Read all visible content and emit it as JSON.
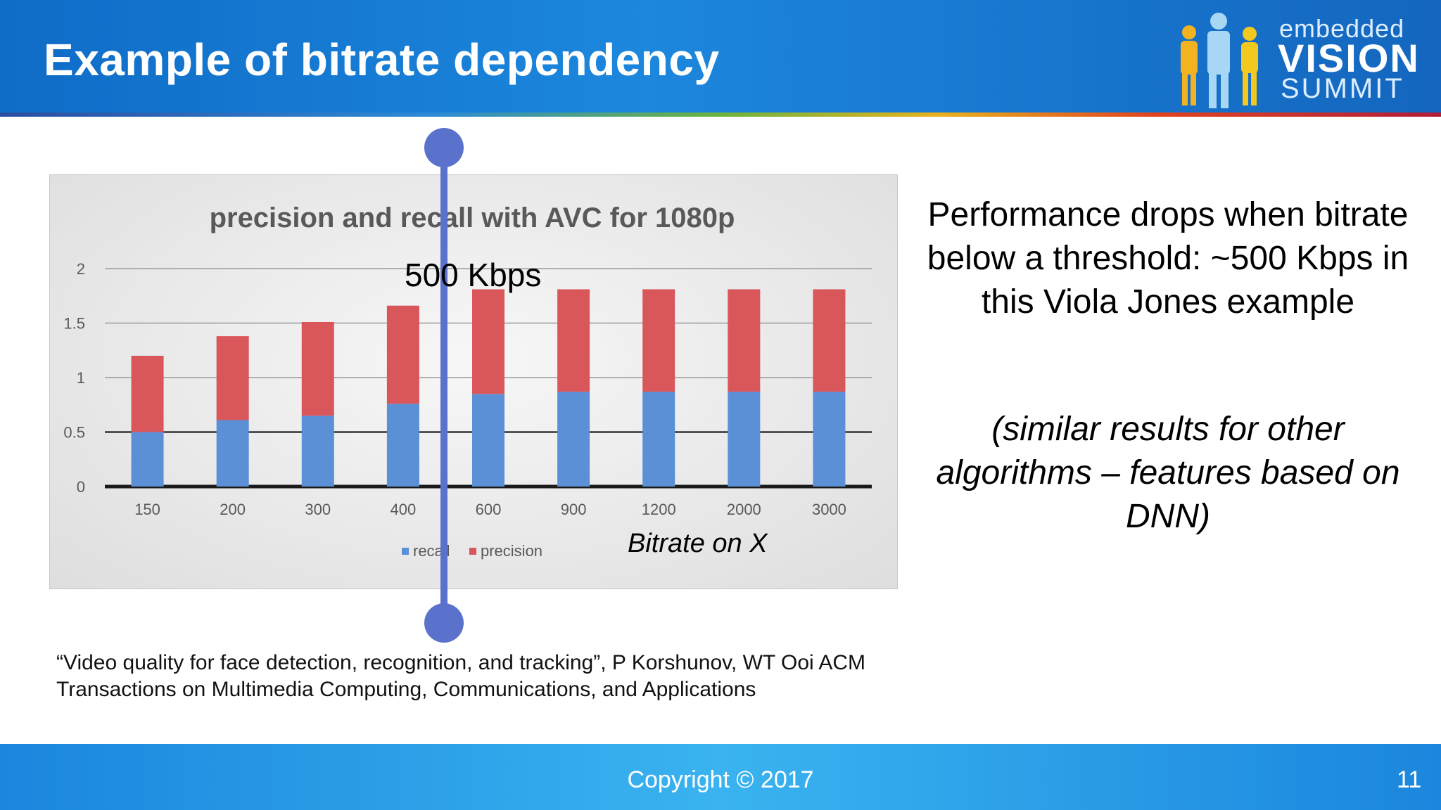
{
  "slide": {
    "title": "Example of bitrate dependency",
    "logo": {
      "line1": "embedded",
      "line2": "VISION",
      "line3": "SUMMIT"
    },
    "threshold_label": "500 Kbps",
    "x_axis_note": "Bitrate on X",
    "summary": "Performance drops when bitrate below a threshold: ~500 Kbps in this Viola Jones example",
    "note": "(similar results for other algorithms – features based on DNN)",
    "citation": "“Video quality for face detection, recognition, and tracking”, P Korshunov, WT Ooi ACM Transactions on Multimedia Computing, Communications, and Applications",
    "footer": {
      "copyright": "Copyright © 2017",
      "page_number": "11"
    }
  },
  "chart_data": {
    "type": "bar",
    "stacked": true,
    "title": "precision and recall with AVC for 1080p",
    "categories": [
      "150",
      "200",
      "300",
      "400",
      "600",
      "900",
      "1200",
      "2000",
      "3000"
    ],
    "series": [
      {
        "name": "recall",
        "color": "#5b8fd6",
        "values": [
          0.5,
          0.61,
          0.65,
          0.76,
          0.85,
          0.87,
          0.87,
          0.87,
          0.87
        ]
      },
      {
        "name": "precision",
        "color": "#d9575a",
        "values": [
          0.7,
          0.77,
          0.86,
          0.9,
          0.96,
          0.94,
          0.94,
          0.94,
          0.94
        ]
      }
    ],
    "yticks": [
      "0",
      "0.5",
      "1",
      "1.5",
      "2"
    ],
    "ylim": [
      0,
      2
    ],
    "grid": true,
    "legend_position": "bottom"
  }
}
